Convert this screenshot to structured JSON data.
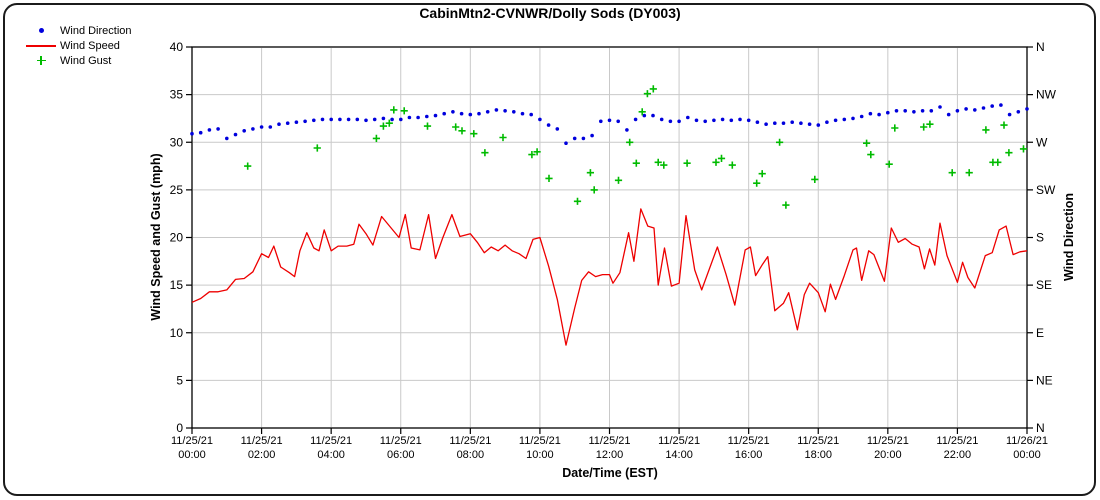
{
  "title": "CabinMtn2-CVNWR/Dolly Sods (DY003)",
  "legend": [
    {
      "label": "Wind Direction",
      "marker": "dot",
      "color": "#0000dd"
    },
    {
      "label": "Wind Speed",
      "marker": "line",
      "color": "#ee0000"
    },
    {
      "label": "Wind Gust",
      "marker": "plus",
      "color": "#00bb00"
    }
  ],
  "colors": {
    "wind_direction": "#0000dd",
    "wind_speed": "#ee0000",
    "wind_gust": "#00bb00",
    "grid": "#c9c9c9",
    "axis": "#000000"
  },
  "chart_data": {
    "type": "line+scatter",
    "title": "CabinMtn2-CVNWR/Dolly Sods (DY003)",
    "xlabel": "Date/Time (EST)",
    "ylabel_left": "Wind Speed and Gust (mph)",
    "ylabel_right": "Wind Direction",
    "grid": true,
    "legend_position": "top-left",
    "x_range_hours": [
      0,
      24
    ],
    "x_ticks": [
      {
        "hours": 0,
        "line1": "11/25/21",
        "line2": "00:00"
      },
      {
        "hours": 2,
        "line1": "11/25/21",
        "line2": "02:00"
      },
      {
        "hours": 4,
        "line1": "11/25/21",
        "line2": "04:00"
      },
      {
        "hours": 6,
        "line1": "11/25/21",
        "line2": "06:00"
      },
      {
        "hours": 8,
        "line1": "11/25/21",
        "line2": "08:00"
      },
      {
        "hours": 10,
        "line1": "11/25/21",
        "line2": "10:00"
      },
      {
        "hours": 12,
        "line1": "11/25/21",
        "line2": "12:00"
      },
      {
        "hours": 14,
        "line1": "11/25/21",
        "line2": "14:00"
      },
      {
        "hours": 16,
        "line1": "11/25/21",
        "line2": "16:00"
      },
      {
        "hours": 18,
        "line1": "11/25/21",
        "line2": "18:00"
      },
      {
        "hours": 20,
        "line1": "11/25/21",
        "line2": "20:00"
      },
      {
        "hours": 22,
        "line1": "11/25/21",
        "line2": "22:00"
      },
      {
        "hours": 24,
        "line1": "11/26/21",
        "line2": "00:00"
      }
    ],
    "y_left": {
      "min": 0,
      "max": 40,
      "tick_step": 5,
      "ticks": [
        0,
        5,
        10,
        15,
        20,
        25,
        30,
        35,
        40
      ]
    },
    "y_right_labels_bottom_to_top": [
      "N",
      "NE",
      "E",
      "SE",
      "S",
      "SW",
      "W",
      "NW",
      "N"
    ],
    "note": "wind_direction and wind_gust values are plotted on the shared 0-40 axis scale; direction 0-40 maps to compass N through N (0-360 deg)",
    "series": {
      "wind_speed": {
        "name": "Wind Speed",
        "units": "mph",
        "points": [
          [
            0,
            13.2
          ],
          [
            0.25,
            13.6
          ],
          [
            0.5,
            14.3
          ],
          [
            0.75,
            14.3
          ],
          [
            1.0,
            14.5
          ],
          [
            1.25,
            15.6
          ],
          [
            1.5,
            15.7
          ],
          [
            1.75,
            16.4
          ],
          [
            2.0,
            18.3
          ],
          [
            2.2,
            17.9
          ],
          [
            2.35,
            19.1
          ],
          [
            2.55,
            16.9
          ],
          [
            2.8,
            16.3
          ],
          [
            2.95,
            15.9
          ],
          [
            3.1,
            18.6
          ],
          [
            3.3,
            20.5
          ],
          [
            3.5,
            18.9
          ],
          [
            3.65,
            18.6
          ],
          [
            3.8,
            20.8
          ],
          [
            4.0,
            18.6
          ],
          [
            4.2,
            19.1
          ],
          [
            4.45,
            19.1
          ],
          [
            4.65,
            19.3
          ],
          [
            4.8,
            21.4
          ],
          [
            5.0,
            20.4
          ],
          [
            5.2,
            19.2
          ],
          [
            5.45,
            22.2
          ],
          [
            5.7,
            21.1
          ],
          [
            5.95,
            20.0
          ],
          [
            6.13,
            22.4
          ],
          [
            6.3,
            18.9
          ],
          [
            6.55,
            18.7
          ],
          [
            6.8,
            22.4
          ],
          [
            7.0,
            17.8
          ],
          [
            7.2,
            19.9
          ],
          [
            7.47,
            22.4
          ],
          [
            7.7,
            20.1
          ],
          [
            8.0,
            20.4
          ],
          [
            8.2,
            19.5
          ],
          [
            8.4,
            18.4
          ],
          [
            8.6,
            19.0
          ],
          [
            8.8,
            18.6
          ],
          [
            9.0,
            19.2
          ],
          [
            9.2,
            18.6
          ],
          [
            9.4,
            18.3
          ],
          [
            9.6,
            17.8
          ],
          [
            9.8,
            19.8
          ],
          [
            10.0,
            20.0
          ],
          [
            10.25,
            17.0
          ],
          [
            10.5,
            13.5
          ],
          [
            10.75,
            8.7
          ],
          [
            11.0,
            12.6
          ],
          [
            11.2,
            15.5
          ],
          [
            11.4,
            16.4
          ],
          [
            11.6,
            15.9
          ],
          [
            11.8,
            16.1
          ],
          [
            12.0,
            16.1
          ],
          [
            12.1,
            15.2
          ],
          [
            12.3,
            16.3
          ],
          [
            12.55,
            20.5
          ],
          [
            12.7,
            17.5
          ],
          [
            12.9,
            23.0
          ],
          [
            13.1,
            21.2
          ],
          [
            13.28,
            21.0
          ],
          [
            13.4,
            15.0
          ],
          [
            13.58,
            18.9
          ],
          [
            13.78,
            14.9
          ],
          [
            14.0,
            15.2
          ],
          [
            14.2,
            22.3
          ],
          [
            14.45,
            16.6
          ],
          [
            14.65,
            14.5
          ],
          [
            15.1,
            19.0
          ],
          [
            15.35,
            16.1
          ],
          [
            15.6,
            12.9
          ],
          [
            15.9,
            18.7
          ],
          [
            16.05,
            19.0
          ],
          [
            16.2,
            16.0
          ],
          [
            16.4,
            17.2
          ],
          [
            16.55,
            18.0
          ],
          [
            16.75,
            12.3
          ],
          [
            17.0,
            13.1
          ],
          [
            17.15,
            14.2
          ],
          [
            17.4,
            10.3
          ],
          [
            17.6,
            14.0
          ],
          [
            17.75,
            15.2
          ],
          [
            18.0,
            14.2
          ],
          [
            18.2,
            12.2
          ],
          [
            18.35,
            15.1
          ],
          [
            18.5,
            13.5
          ],
          [
            18.75,
            16.0
          ],
          [
            19.0,
            18.7
          ],
          [
            19.1,
            18.9
          ],
          [
            19.25,
            15.5
          ],
          [
            19.45,
            18.6
          ],
          [
            19.6,
            18.2
          ],
          [
            19.9,
            15.4
          ],
          [
            20.1,
            21.0
          ],
          [
            20.3,
            19.5
          ],
          [
            20.5,
            19.9
          ],
          [
            20.7,
            19.3
          ],
          [
            20.9,
            19.0
          ],
          [
            21.05,
            16.7
          ],
          [
            21.2,
            18.8
          ],
          [
            21.35,
            17.1
          ],
          [
            21.5,
            21.5
          ],
          [
            21.7,
            18.1
          ],
          [
            22.0,
            15.3
          ],
          [
            22.15,
            17.4
          ],
          [
            22.3,
            15.8
          ],
          [
            22.5,
            14.7
          ],
          [
            22.8,
            18.1
          ],
          [
            23.0,
            18.4
          ],
          [
            23.2,
            20.8
          ],
          [
            23.4,
            21.2
          ],
          [
            23.6,
            18.2
          ],
          [
            23.8,
            18.5
          ],
          [
            24.0,
            18.6
          ]
        ]
      },
      "wind_direction": {
        "name": "Wind Direction",
        "units": "axis-units (0-40 = 0-360 deg)",
        "start_hour": 0,
        "interval_hours": 0.25,
        "values": [
          30.9,
          31.0,
          31.3,
          31.4,
          30.4,
          30.8,
          31.2,
          31.4,
          31.6,
          31.6,
          31.9,
          32.0,
          32.1,
          32.2,
          32.3,
          32.4,
          32.4,
          32.4,
          32.4,
          32.4,
          32.3,
          32.4,
          32.5,
          32.4,
          32.4,
          32.6,
          32.6,
          32.7,
          32.8,
          33.0,
          33.2,
          33.0,
          32.9,
          33.0,
          33.2,
          33.4,
          33.3,
          33.2,
          33.0,
          32.9,
          32.4,
          31.8,
          31.4,
          29.9,
          30.4,
          30.4,
          30.7,
          32.2,
          32.3,
          32.2,
          31.3,
          32.4,
          32.8,
          32.8,
          32.4,
          32.2,
          32.2,
          32.6,
          32.3,
          32.2,
          32.3,
          32.4,
          32.3,
          32.4,
          32.3,
          32.1,
          31.9,
          32.0,
          32.0,
          32.1,
          32.0,
          31.9,
          31.8,
          32.1,
          32.3,
          32.4,
          32.5,
          32.7,
          33.0,
          32.9,
          33.1,
          33.3,
          33.3,
          33.2,
          33.3,
          33.3,
          33.7,
          32.9,
          33.3,
          33.5,
          33.4,
          33.6,
          33.8,
          33.9,
          32.9,
          33.2,
          33.5
        ]
      },
      "wind_gust": {
        "name": "Wind Gust",
        "units": "axis-units (mph)",
        "points": [
          [
            1.6,
            27.5
          ],
          [
            3.6,
            29.4
          ],
          [
            5.3,
            30.4
          ],
          [
            5.5,
            31.7
          ],
          [
            5.67,
            32.0
          ],
          [
            5.8,
            33.4
          ],
          [
            6.1,
            33.3
          ],
          [
            6.77,
            31.7
          ],
          [
            7.58,
            31.6
          ],
          [
            7.76,
            31.2
          ],
          [
            8.1,
            30.9
          ],
          [
            8.42,
            28.9
          ],
          [
            8.94,
            30.5
          ],
          [
            9.77,
            28.7
          ],
          [
            9.92,
            29.0
          ],
          [
            10.26,
            26.2
          ],
          [
            11.08,
            23.8
          ],
          [
            11.45,
            26.8
          ],
          [
            11.56,
            25.0
          ],
          [
            12.26,
            26.0
          ],
          [
            12.58,
            30.0
          ],
          [
            12.77,
            27.8
          ],
          [
            12.94,
            33.2
          ],
          [
            13.09,
            35.1
          ],
          [
            13.26,
            35.6
          ],
          [
            13.4,
            27.9
          ],
          [
            13.56,
            27.6
          ],
          [
            14.23,
            27.8
          ],
          [
            15.06,
            27.9
          ],
          [
            15.22,
            28.3
          ],
          [
            15.53,
            27.6
          ],
          [
            16.23,
            25.7
          ],
          [
            16.39,
            26.7
          ],
          [
            16.89,
            30.0
          ],
          [
            17.07,
            23.4
          ],
          [
            17.9,
            26.1
          ],
          [
            19.39,
            29.9
          ],
          [
            19.51,
            28.7
          ],
          [
            20.04,
            27.7
          ],
          [
            20.2,
            31.5
          ],
          [
            21.03,
            31.6
          ],
          [
            21.21,
            31.9
          ],
          [
            21.85,
            26.8
          ],
          [
            22.34,
            26.8
          ],
          [
            22.82,
            31.3
          ],
          [
            23.02,
            27.9
          ],
          [
            23.16,
            27.9
          ],
          [
            23.34,
            31.8
          ],
          [
            23.48,
            28.9
          ],
          [
            23.9,
            29.3
          ]
        ]
      }
    }
  }
}
